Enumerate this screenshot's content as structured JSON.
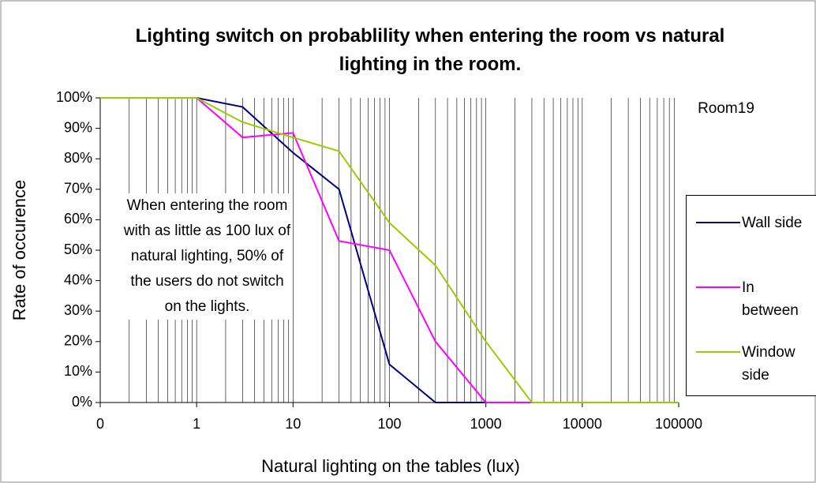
{
  "chart_data": {
    "type": "line",
    "title": "Lighting switch on probablility when entering the room vs natural lighting in the room.",
    "xlabel": "Natural lighting on the tables (lux)",
    "ylabel": "Rate of occurence",
    "annotation": "When entering the room with as little as 100 lux of natural lighting, 50% of the users do not switch on the lights.",
    "subtitle": "Room19",
    "xscale": "log",
    "xgrid_minor": true,
    "legend": "right",
    "x": [
      0.1,
      1,
      3,
      10,
      30,
      100,
      300,
      1000,
      3000,
      10000,
      100000
    ],
    "series": [
      {
        "name": "Wall side",
        "color": "#000080",
        "values": [
          100,
          100,
          97,
          82,
          70,
          12.5,
          0,
          0,
          0,
          0,
          0
        ]
      },
      {
        "name": "In between",
        "color": "#ff00ff",
        "values": [
          100,
          100,
          87,
          88.5,
          53,
          50,
          20,
          0,
          0,
          0,
          0
        ]
      },
      {
        "name": "Window side",
        "color": "#99cc00",
        "values": [
          100,
          100,
          92,
          87,
          82.5,
          59,
          45,
          20,
          0,
          0,
          0
        ]
      }
    ],
    "xlim": [
      0.1,
      100000
    ],
    "xticks": [
      {
        "value": 0.1,
        "label": "0"
      },
      1,
      10,
      100,
      1000,
      10000,
      100000
    ],
    "ylim": [
      0,
      100
    ],
    "yticks": [
      {
        "value": 0,
        "label": "0%"
      },
      {
        "value": 10,
        "label": "10%"
      },
      {
        "value": 20,
        "label": "20%"
      },
      {
        "value": 30,
        "label": "30%"
      },
      {
        "value": 40,
        "label": "40%"
      },
      {
        "value": 50,
        "label": "50%"
      },
      {
        "value": 60,
        "label": "60%"
      },
      {
        "value": 70,
        "label": "70%"
      },
      {
        "value": 80,
        "label": "80%"
      },
      {
        "value": 90,
        "label": "90%"
      },
      {
        "value": 100,
        "label": "100%"
      }
    ]
  }
}
